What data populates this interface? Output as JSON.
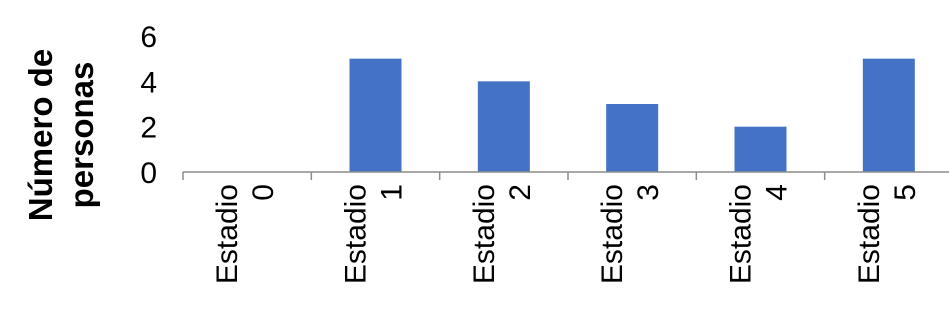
{
  "chart_data": {
    "type": "bar",
    "categories": [
      [
        "Estadio",
        "0"
      ],
      [
        "Estadio",
        "1"
      ],
      [
        "Estadio",
        "2"
      ],
      [
        "Estadio",
        "3"
      ],
      [
        "Estadio",
        "4"
      ],
      [
        "Estadio",
        "5"
      ]
    ],
    "values": [
      0,
      5,
      4,
      3,
      2,
      5
    ],
    "ylabel": [
      "Número de",
      "personas"
    ],
    "ylim": [
      0,
      6
    ],
    "yticks": [
      "0",
      "2",
      "4",
      "6"
    ],
    "grid": false,
    "legend": "none",
    "bar_color": "#4472c4"
  }
}
